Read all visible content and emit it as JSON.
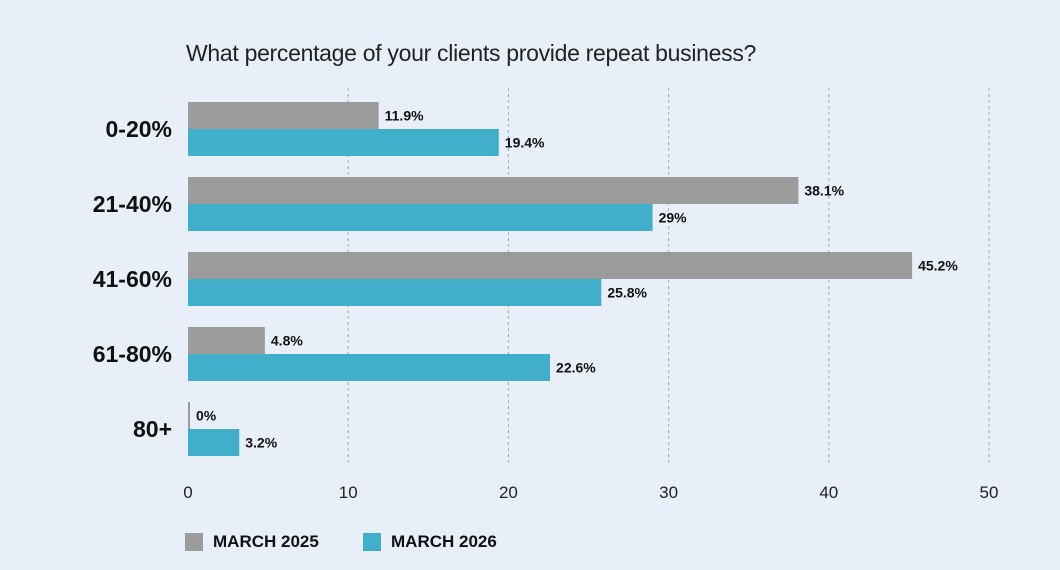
{
  "chart_data": {
    "type": "bar",
    "orientation": "horizontal",
    "title": "What percentage of your clients provide repeat business?",
    "categories": [
      "0-20%",
      "21-40%",
      "41-60%",
      "61-80%",
      "80+"
    ],
    "series": [
      {
        "name": "MARCH 2025",
        "color": "#9b9b9b",
        "values": [
          11.9,
          38.1,
          45.2,
          4.8,
          0
        ],
        "labels": [
          "11.9%",
          "38.1%",
          "45.2%",
          "4.8%",
          "0%"
        ]
      },
      {
        "name": "MARCH 2026",
        "color": "#41aeca",
        "values": [
          19.4,
          29,
          25.8,
          22.6,
          3.2
        ],
        "labels": [
          "19.4%",
          "29%",
          "25.8%",
          "22.6%",
          "3.2%"
        ]
      }
    ],
    "xlim": [
      0,
      50
    ],
    "xticks": [
      "0",
      "10",
      "20",
      "30",
      "40",
      "50"
    ],
    "grid": true,
    "legend": "bottom-left"
  }
}
